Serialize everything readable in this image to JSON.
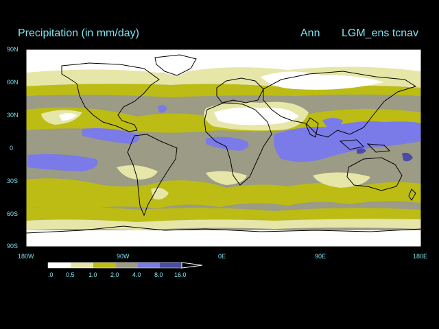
{
  "header": {
    "title": "Precipitation (in mm/day)",
    "period": "Ann",
    "model": "LGM_ens tcnav"
  },
  "axes": {
    "lat_ticks": [
      "90N",
      "60N",
      "30N",
      "0",
      "30S",
      "60S",
      "90S"
    ],
    "lon_ticks": [
      "180W",
      "90W",
      "0E",
      "90E",
      "180E"
    ]
  },
  "colorbar": {
    "labels": [
      ".0",
      "0.5",
      "1.0",
      "2.0",
      "4.0",
      "8.0",
      "16.0"
    ],
    "colors": [
      "#ffffff",
      "#e6e6a8",
      "#bcbc14",
      "#9b9b86",
      "#7a7ae8",
      "#4b4ba8"
    ]
  },
  "palette": {
    "background": "#000000",
    "text": "#7fe3f0",
    "very_low": "#ffffff",
    "low": "#e6e6a8",
    "mid": "#bcbc14",
    "moderate": "#9b9b86",
    "high": "#7a7ae8",
    "very_high": "#4b4ba8"
  }
}
